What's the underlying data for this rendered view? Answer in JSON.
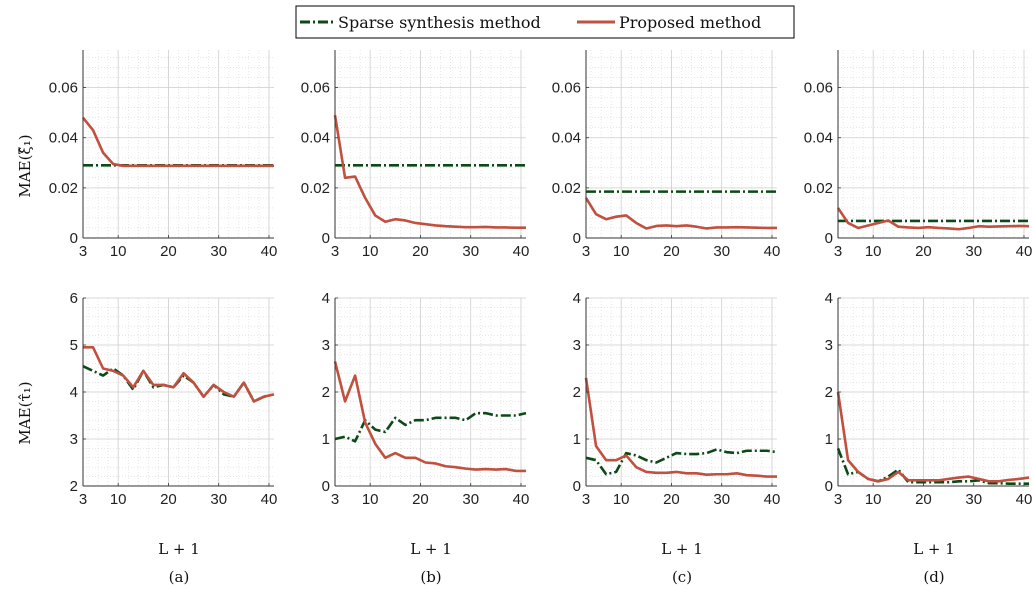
{
  "legend": {
    "items": [
      {
        "label": "Sparse synthesis method",
        "color": "#0b4a17",
        "dash": "dashdot"
      },
      {
        "label": "Proposed method",
        "color": "#c0503f",
        "dash": "solid"
      }
    ]
  },
  "row_labels": {
    "top": "MAE(ξ̂₁)",
    "bottom": "MAE(τ̂₁)"
  },
  "x_label": "L + 1",
  "captions": [
    "(a)",
    "(b)",
    "(c)",
    "(d)"
  ],
  "chart_data": [
    {
      "type": "line",
      "panel": "(a)-top",
      "x": [
        3,
        5,
        7,
        9,
        11,
        13,
        15,
        17,
        19,
        21,
        23,
        25,
        27,
        29,
        31,
        33,
        35,
        37,
        39,
        41
      ],
      "xlim": [
        3,
        41
      ],
      "xticks": [
        3,
        10,
        20,
        30,
        40
      ],
      "ylim": [
        0,
        0.075
      ],
      "yticks": [
        0,
        0.02,
        0.04,
        0.06
      ],
      "ytick_labels": [
        "0",
        "0.02",
        "0.04",
        "0.06"
      ],
      "series": [
        {
          "name": "Sparse synthesis method",
          "values": [
            0.029,
            0.029,
            0.029,
            0.029,
            0.029,
            0.029,
            0.029,
            0.029,
            0.029,
            0.029,
            0.029,
            0.029,
            0.029,
            0.029,
            0.029,
            0.029,
            0.029,
            0.029,
            0.029,
            0.029
          ]
        },
        {
          "name": "Proposed method",
          "values": [
            0.048,
            0.043,
            0.034,
            0.0295,
            0.0288,
            0.0288,
            0.0288,
            0.0288,
            0.0288,
            0.0288,
            0.0288,
            0.0288,
            0.0288,
            0.0288,
            0.0288,
            0.0288,
            0.0288,
            0.0288,
            0.0288,
            0.0288
          ]
        }
      ]
    },
    {
      "type": "line",
      "panel": "(b)-top",
      "x": [
        3,
        5,
        7,
        9,
        11,
        13,
        15,
        17,
        19,
        21,
        23,
        25,
        27,
        29,
        31,
        33,
        35,
        37,
        39,
        41
      ],
      "xlim": [
        3,
        41
      ],
      "xticks": [
        3,
        10,
        20,
        30,
        40
      ],
      "ylim": [
        0,
        0.075
      ],
      "yticks": [
        0,
        0.02,
        0.04,
        0.06
      ],
      "ytick_labels": [
        "0",
        "0.02",
        "0.04",
        "0.06"
      ],
      "series": [
        {
          "name": "Sparse synthesis method",
          "values": [
            0.029,
            0.029,
            0.029,
            0.029,
            0.029,
            0.029,
            0.029,
            0.029,
            0.029,
            0.029,
            0.029,
            0.029,
            0.029,
            0.029,
            0.029,
            0.029,
            0.029,
            0.029,
            0.029,
            0.029
          ]
        },
        {
          "name": "Proposed method",
          "values": [
            0.049,
            0.024,
            0.0245,
            0.016,
            0.009,
            0.0065,
            0.0075,
            0.007,
            0.006,
            0.0055,
            0.005,
            0.0047,
            0.0045,
            0.0043,
            0.0043,
            0.0044,
            0.0042,
            0.0042,
            0.0041,
            0.0041
          ]
        }
      ]
    },
    {
      "type": "line",
      "panel": "(c)-top",
      "x": [
        3,
        5,
        7,
        9,
        11,
        13,
        15,
        17,
        19,
        21,
        23,
        25,
        27,
        29,
        31,
        33,
        35,
        37,
        39,
        41
      ],
      "xlim": [
        3,
        41
      ],
      "xticks": [
        3,
        10,
        20,
        30,
        40
      ],
      "ylim": [
        0,
        0.075
      ],
      "yticks": [
        0,
        0.02,
        0.04,
        0.06
      ],
      "ytick_labels": [
        "0",
        "0.02",
        "0.04",
        "0.06"
      ],
      "series": [
        {
          "name": "Sparse synthesis method",
          "values": [
            0.0185,
            0.0185,
            0.0185,
            0.0185,
            0.0185,
            0.0185,
            0.0185,
            0.0185,
            0.0185,
            0.0185,
            0.0185,
            0.0185,
            0.0185,
            0.0185,
            0.0185,
            0.0185,
            0.0185,
            0.0185,
            0.0185,
            0.0185
          ]
        },
        {
          "name": "Proposed method",
          "values": [
            0.016,
            0.0095,
            0.0075,
            0.0085,
            0.009,
            0.006,
            0.0038,
            0.0048,
            0.005,
            0.0047,
            0.005,
            0.0045,
            0.0038,
            0.0042,
            0.0042,
            0.0043,
            0.0042,
            0.0041,
            0.004,
            0.004
          ]
        }
      ]
    },
    {
      "type": "line",
      "panel": "(d)-top",
      "x": [
        3,
        5,
        7,
        9,
        11,
        13,
        15,
        17,
        19,
        21,
        23,
        25,
        27,
        29,
        31,
        33,
        35,
        37,
        39,
        41
      ],
      "xlim": [
        3,
        41
      ],
      "xticks": [
        3,
        10,
        20,
        30,
        40
      ],
      "ylim": [
        0,
        0.075
      ],
      "yticks": [
        0,
        0.02,
        0.04,
        0.06
      ],
      "ytick_labels": [
        "0",
        "0.02",
        "0.04",
        "0.06"
      ],
      "series": [
        {
          "name": "Sparse synthesis method",
          "values": [
            0.0068,
            0.0068,
            0.0068,
            0.0068,
            0.0068,
            0.0068,
            0.0068,
            0.0068,
            0.0068,
            0.0068,
            0.0068,
            0.0068,
            0.0068,
            0.0068,
            0.0068,
            0.0068,
            0.0068,
            0.0068,
            0.0068,
            0.0068
          ]
        },
        {
          "name": "Proposed method",
          "values": [
            0.012,
            0.006,
            0.004,
            0.005,
            0.006,
            0.007,
            0.0045,
            0.0042,
            0.004,
            0.0043,
            0.004,
            0.0038,
            0.0035,
            0.004,
            0.0047,
            0.0045,
            0.0046,
            0.0047,
            0.0048,
            0.0047
          ]
        }
      ]
    },
    {
      "type": "line",
      "panel": "(a)-bottom",
      "x": [
        3,
        5,
        7,
        9,
        11,
        13,
        15,
        17,
        19,
        21,
        23,
        25,
        27,
        29,
        31,
        33,
        35,
        37,
        39,
        41
      ],
      "xlim": [
        3,
        41
      ],
      "xticks": [
        3,
        10,
        20,
        30,
        40
      ],
      "ylim": [
        2,
        6
      ],
      "yticks": [
        2,
        3,
        4,
        5,
        6
      ],
      "ytick_labels": [
        "2",
        "3",
        "4",
        "5",
        "6"
      ],
      "series": [
        {
          "name": "Sparse synthesis method",
          "values": [
            4.55,
            4.45,
            4.35,
            4.5,
            4.35,
            4.05,
            4.45,
            4.1,
            4.15,
            4.1,
            4.35,
            4.2,
            3.9,
            4.15,
            3.95,
            3.9,
            4.2,
            3.8,
            3.9,
            3.95
          ]
        },
        {
          "name": "Proposed method",
          "values": [
            4.95,
            4.95,
            4.5,
            4.45,
            4.35,
            4.1,
            4.45,
            4.15,
            4.15,
            4.1,
            4.4,
            4.2,
            3.9,
            4.15,
            4.0,
            3.9,
            4.2,
            3.8,
            3.9,
            3.95
          ]
        }
      ]
    },
    {
      "type": "line",
      "panel": "(b)-bottom",
      "x": [
        3,
        5,
        7,
        9,
        11,
        13,
        15,
        17,
        19,
        21,
        23,
        25,
        27,
        29,
        31,
        33,
        35,
        37,
        39,
        41
      ],
      "xlim": [
        3,
        41
      ],
      "xticks": [
        3,
        10,
        20,
        30,
        40
      ],
      "ylim": [
        0,
        4
      ],
      "yticks": [
        0,
        1,
        2,
        3,
        4
      ],
      "ytick_labels": [
        "0",
        "1",
        "2",
        "3",
        "4"
      ],
      "series": [
        {
          "name": "Sparse synthesis method",
          "values": [
            1.0,
            1.05,
            0.95,
            1.4,
            1.2,
            1.15,
            1.45,
            1.3,
            1.4,
            1.4,
            1.45,
            1.45,
            1.45,
            1.4,
            1.55,
            1.55,
            1.5,
            1.5,
            1.5,
            1.55
          ]
        },
        {
          "name": "Proposed method",
          "values": [
            2.65,
            1.8,
            2.35,
            1.35,
            0.9,
            0.6,
            0.7,
            0.6,
            0.6,
            0.5,
            0.48,
            0.42,
            0.4,
            0.37,
            0.35,
            0.36,
            0.35,
            0.36,
            0.32,
            0.32
          ]
        }
      ]
    },
    {
      "type": "line",
      "panel": "(c)-bottom",
      "x": [
        3,
        5,
        7,
        9,
        11,
        13,
        15,
        17,
        19,
        21,
        23,
        25,
        27,
        29,
        31,
        33,
        35,
        37,
        39,
        41
      ],
      "xlim": [
        3,
        41
      ],
      "xticks": [
        3,
        10,
        20,
        30,
        40
      ],
      "ylim": [
        0,
        4
      ],
      "yticks": [
        0,
        1,
        2,
        3,
        4
      ],
      "ytick_labels": [
        "0",
        "1",
        "2",
        "3",
        "4"
      ],
      "series": [
        {
          "name": "Sparse synthesis method",
          "values": [
            0.6,
            0.55,
            0.25,
            0.3,
            0.7,
            0.65,
            0.55,
            0.5,
            0.6,
            0.7,
            0.68,
            0.68,
            0.7,
            0.78,
            0.72,
            0.7,
            0.75,
            0.75,
            0.75,
            0.72
          ]
        },
        {
          "name": "Proposed method",
          "values": [
            2.3,
            0.85,
            0.55,
            0.55,
            0.65,
            0.4,
            0.3,
            0.28,
            0.28,
            0.3,
            0.27,
            0.27,
            0.24,
            0.25,
            0.25,
            0.27,
            0.23,
            0.22,
            0.2,
            0.2
          ]
        }
      ]
    },
    {
      "type": "line",
      "panel": "(d)-bottom",
      "x": [
        3,
        5,
        7,
        9,
        11,
        13,
        15,
        17,
        19,
        21,
        23,
        25,
        27,
        29,
        31,
        33,
        35,
        37,
        39,
        41
      ],
      "xlim": [
        3,
        41
      ],
      "xticks": [
        3,
        10,
        20,
        30,
        40
      ],
      "ylim": [
        0,
        4
      ],
      "yticks": [
        0,
        1,
        2,
        3,
        4
      ],
      "ytick_labels": [
        "0",
        "1",
        "2",
        "3",
        "4"
      ],
      "series": [
        {
          "name": "Sparse synthesis method",
          "values": [
            0.8,
            0.25,
            0.3,
            0.15,
            0.1,
            0.2,
            0.35,
            0.08,
            0.08,
            0.08,
            0.08,
            0.08,
            0.1,
            0.1,
            0.12,
            0.06,
            0.06,
            0.05,
            0.05,
            0.05
          ]
        },
        {
          "name": "Proposed method",
          "values": [
            2.0,
            0.55,
            0.3,
            0.15,
            0.1,
            0.15,
            0.3,
            0.12,
            0.12,
            0.12,
            0.12,
            0.15,
            0.18,
            0.2,
            0.15,
            0.1,
            0.1,
            0.13,
            0.15,
            0.18
          ]
        }
      ]
    }
  ]
}
